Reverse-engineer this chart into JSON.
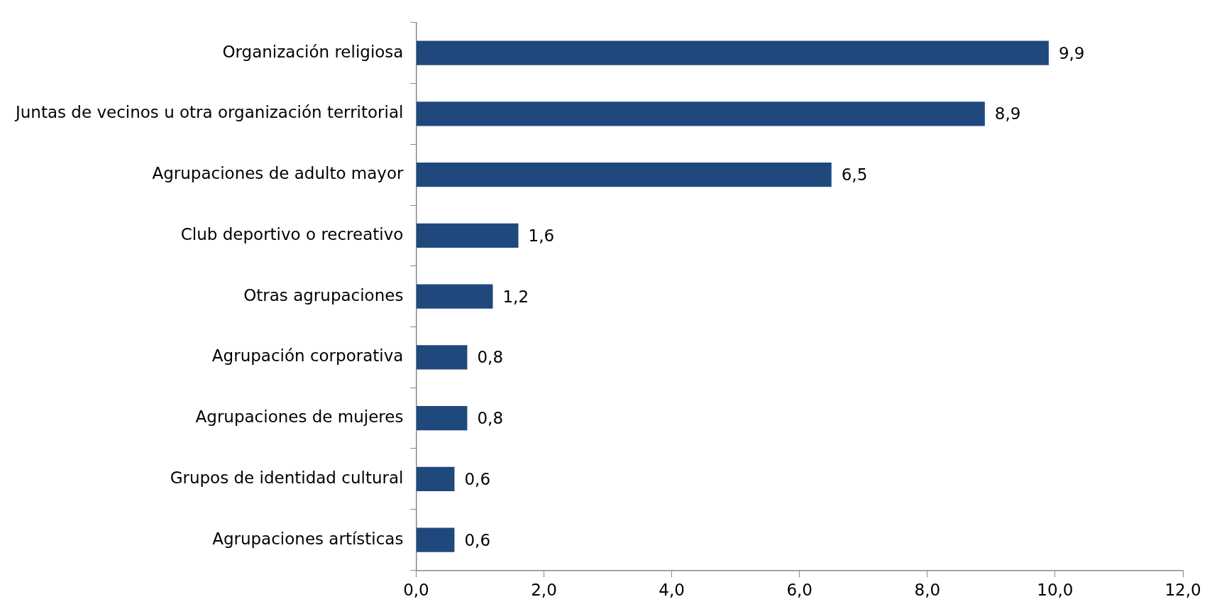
{
  "chart_data": {
    "type": "bar",
    "orientation": "horizontal",
    "categories": [
      "Organización religiosa",
      "Juntas de vecinos u otra organización territorial",
      "Agrupaciones de adulto mayor",
      "Club deportivo o recreativo",
      "Otras agrupaciones",
      "Agrupación corporativa",
      "Agrupaciones de mujeres",
      "Grupos de identidad cultural",
      "Agrupaciones artísticas"
    ],
    "values": [
      9.9,
      8.9,
      6.5,
      1.6,
      1.2,
      0.8,
      0.8,
      0.6,
      0.6
    ],
    "value_labels": [
      "9,9",
      "8,9",
      "6,5",
      "1,6",
      "1,2",
      "0,8",
      "0,8",
      "0,6",
      "0,6"
    ],
    "color": "#1f497d",
    "xlim": [
      0,
      12
    ],
    "xticks": [
      {
        "value": 0,
        "label": "0,0"
      },
      {
        "value": 2,
        "label": "2,0"
      },
      {
        "value": 4,
        "label": "4,0"
      },
      {
        "value": 6,
        "label": "6,0"
      },
      {
        "value": 8,
        "label": "8,0"
      },
      {
        "value": 10,
        "label": "10,0"
      },
      {
        "value": 12,
        "label": "12,0"
      }
    ],
    "grid": false,
    "legend": false
  }
}
